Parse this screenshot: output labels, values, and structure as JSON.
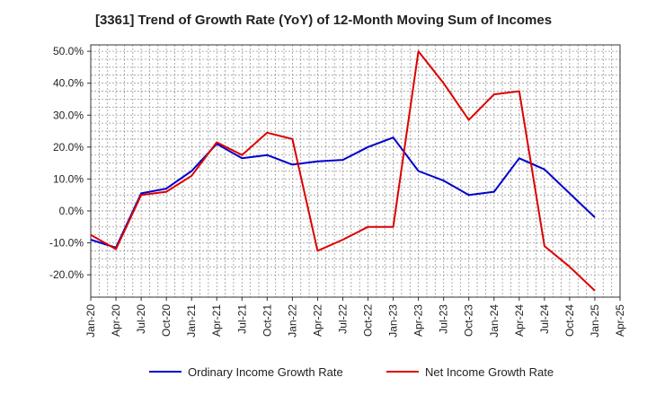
{
  "chart_data": {
    "type": "line",
    "title": "[3361]  Trend of Growth Rate (YoY) of 12-Month Moving Sum of Incomes",
    "xlabel": "",
    "ylabel": "",
    "x_ticks": [
      "Jan-20",
      "Apr-20",
      "Jul-20",
      "Oct-20",
      "Jan-21",
      "Apr-21",
      "Jul-21",
      "Oct-21",
      "Jan-22",
      "Apr-22",
      "Jul-22",
      "Oct-22",
      "Jan-23",
      "Apr-23",
      "Jul-23",
      "Oct-23",
      "Jan-24",
      "Apr-24",
      "Jul-24",
      "Oct-24",
      "Jan-25",
      "Apr-25"
    ],
    "y_ticks": [
      "50.0%",
      "40.0%",
      "30.0%",
      "20.0%",
      "10.0%",
      "0.0%",
      "-10.0%",
      "-20.0%"
    ],
    "y_tick_values": [
      50,
      40,
      30,
      20,
      10,
      0,
      -10,
      -20
    ],
    "ylim": [
      -27,
      52
    ],
    "grid": true,
    "legend_position": "bottom",
    "series": [
      {
        "name": "Ordinary Income Growth Rate",
        "color": "#0000cc",
        "values": [
          -9.0,
          -11.5,
          5.5,
          7.0,
          12.5,
          21.0,
          16.5,
          17.5,
          14.5,
          15.5,
          16.0,
          20.0,
          23.0,
          12.5,
          9.5,
          5.0,
          6.0,
          16.5,
          13.0,
          5.5,
          -2.0
        ]
      },
      {
        "name": "Net Income Growth Rate",
        "color": "#dd0000",
        "values": [
          -7.5,
          -12.0,
          5.0,
          6.0,
          11.0,
          21.5,
          17.5,
          24.5,
          22.5,
          -12.5,
          -9.0,
          -5.0,
          -5.0,
          50.0,
          40.0,
          28.5,
          36.5,
          37.5,
          -11.0,
          -17.5,
          -25.0
        ]
      }
    ]
  }
}
